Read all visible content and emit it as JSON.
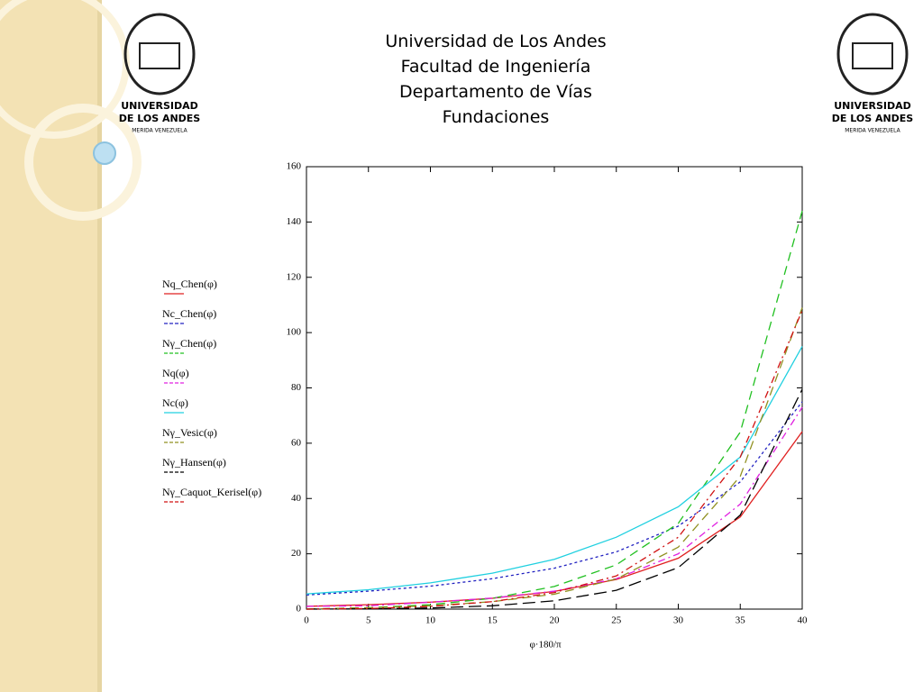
{
  "header": {
    "lines": [
      "Universidad de Los Andes",
      "Facultad de Ingeniería",
      "Departamento de Vías",
      "Fundaciones"
    ]
  },
  "logo": {
    "name_lines": [
      "UNIVERSIDAD",
      "DE LOS ANDES"
    ],
    "place": "MERIDA VENEZUELA"
  },
  "chart_data": {
    "type": "line",
    "x_label": "φ·180/π",
    "x": [
      0,
      5,
      10,
      15,
      20,
      25,
      30,
      35,
      40
    ],
    "xlim": [
      0,
      40
    ],
    "xticks": [
      0,
      5,
      10,
      15,
      20,
      25,
      30,
      35,
      40
    ],
    "ylim": [
      0,
      160
    ],
    "yticks": [
      0,
      20,
      40,
      60,
      80,
      100,
      120,
      140,
      160
    ],
    "grid": false,
    "series": [
      {
        "name": "Nq_Chen(φ)",
        "color": "#e02020",
        "style": "solid",
        "values": [
          1,
          1.6,
          2.5,
          3.9,
          6.4,
          10.7,
          18.4,
          33.3,
          64.2
        ]
      },
      {
        "name": "Nc_Chen(φ)",
        "color": "#2020c0",
        "style": "dotted",
        "values": [
          5.1,
          6.5,
          8.3,
          11,
          14.8,
          20.7,
          30,
          46,
          75
        ]
      },
      {
        "name": "Nγ_Chen(φ)",
        "color": "#20c020",
        "style": "dashed",
        "values": [
          0,
          0.5,
          1.6,
          3.9,
          8.2,
          16,
          31,
          64,
          144
        ]
      },
      {
        "name": "Nq(φ)",
        "color": "#e020e0",
        "style": "dashdot",
        "values": [
          1,
          1.2,
          2.5,
          4,
          6.5,
          11,
          20,
          38,
          73
        ]
      },
      {
        "name": "Nc(φ)",
        "color": "#20d0e0",
        "style": "solid",
        "values": [
          5.5,
          7,
          9.5,
          13,
          18,
          26,
          37,
          55,
          95
        ]
      },
      {
        "name": "Nγ_Vesic(φ)",
        "color": "#909020",
        "style": "dashed",
        "values": [
          0,
          0.5,
          1.2,
          2.7,
          5.4,
          10.9,
          22.4,
          48,
          109
        ]
      },
      {
        "name": "Nγ_Hansen(φ)",
        "color": "#000000",
        "style": "longdash",
        "values": [
          0,
          0.1,
          0.4,
          1.2,
          3,
          6.8,
          15,
          34,
          79.5
        ]
      },
      {
        "name": "Nγ_Caquot_Kerisel(φ)",
        "color": "#d01010",
        "style": "dashdot",
        "values": [
          0,
          0.2,
          1,
          2.7,
          6,
          12,
          26,
          55,
          108
        ]
      }
    ]
  }
}
